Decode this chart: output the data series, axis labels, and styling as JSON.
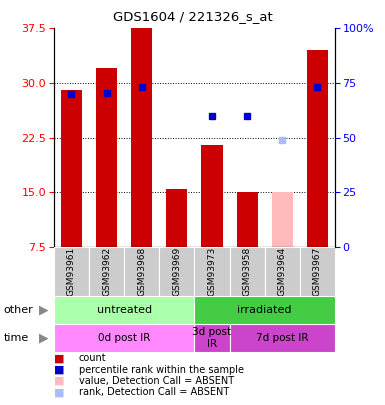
{
  "title": "GDS1604 / 221326_s_at",
  "samples": [
    "GSM93961",
    "GSM93962",
    "GSM93968",
    "GSM93969",
    "GSM93973",
    "GSM93958",
    "GSM93964",
    "GSM93967"
  ],
  "bar_values": [
    29.0,
    32.0,
    37.5,
    15.5,
    21.5,
    15.0,
    null,
    34.5
  ],
  "absent_bar_values": [
    null,
    null,
    null,
    null,
    null,
    null,
    15.0,
    null
  ],
  "blue_dot_left_values": [
    28.5,
    28.7,
    29.5,
    null,
    null,
    null,
    null,
    29.5
  ],
  "blue_dot_right_values": [
    null,
    null,
    null,
    null,
    60.0,
    60.0,
    null,
    null
  ],
  "absent_rank_right": [
    null,
    null,
    null,
    null,
    null,
    null,
    49.0,
    null
  ],
  "ylim_left": [
    7.5,
    37.5
  ],
  "ylim_right": [
    0,
    100
  ],
  "yticks_left": [
    7.5,
    15.0,
    22.5,
    30.0,
    37.5
  ],
  "yticks_right": [
    0,
    25,
    50,
    75,
    100
  ],
  "groups_other": [
    {
      "label": "untreated",
      "start": 0,
      "end": 4,
      "color": "#aaffaa"
    },
    {
      "label": "irradiated",
      "start": 4,
      "end": 8,
      "color": "#44cc44"
    }
  ],
  "groups_time": [
    {
      "label": "0d post IR",
      "start": 0,
      "end": 4,
      "color": "#ff88ff"
    },
    {
      "label": "3d post\nIR",
      "start": 4,
      "end": 5,
      "color": "#cc44cc"
    },
    {
      "label": "7d post IR",
      "start": 5,
      "end": 8,
      "color": "#cc44cc"
    }
  ],
  "legend_items": [
    {
      "color": "#cc0000",
      "label": "count"
    },
    {
      "color": "#0000cc",
      "label": "percentile rank within the sample"
    },
    {
      "color": "#ffbbbb",
      "label": "value, Detection Call = ABSENT"
    },
    {
      "color": "#aabbff",
      "label": "rank, Detection Call = ABSENT"
    }
  ],
  "bar_color": "#cc0000",
  "bar_width": 0.6
}
